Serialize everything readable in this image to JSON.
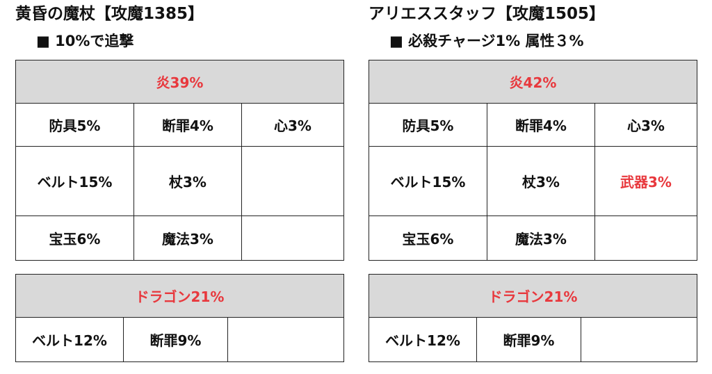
{
  "weapons": [
    {
      "title": "黄昏の魔杖【攻魔1385】",
      "subtitle": "■ 10%で追撃",
      "fire": {
        "header": "炎39%",
        "rows": [
          [
            "防具5%",
            "断罪4%",
            "心3%"
          ],
          [
            "ベルト15%",
            "杖3%",
            ""
          ],
          [
            "宝玉6%",
            "魔法3%",
            ""
          ]
        ]
      },
      "dragon": {
        "header": "ドラゴン21%",
        "row": [
          "ベルト12%",
          "断罪9%",
          ""
        ]
      }
    },
    {
      "title": "アリエススタッフ【攻魔1505】",
      "subtitle": "■ 必殺チャージ1% 属性３%",
      "fire": {
        "header": "炎42%",
        "rows": [
          [
            "防具5%",
            "断罪4%",
            "心3%"
          ],
          [
            "ベルト15%",
            "杖3%",
            "武器3%"
          ],
          [
            "宝玉6%",
            "魔法3%",
            ""
          ]
        ]
      },
      "dragon": {
        "header": "ドラゴン21%",
        "row": [
          "ベルト12%",
          "断罪9%",
          ""
        ]
      }
    }
  ],
  "colors": {
    "header_bg": "#d9d9d9",
    "accent_red": "#e8383d",
    "border": "#222222"
  }
}
